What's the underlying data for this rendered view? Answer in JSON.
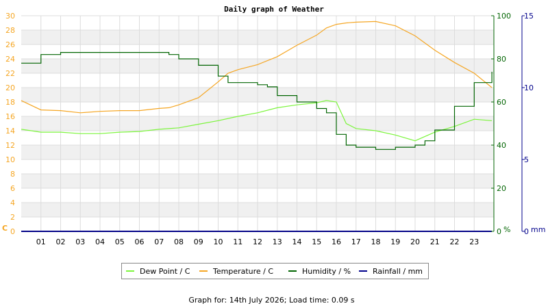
{
  "chart_data": {
    "type": "line",
    "title": "Daily graph of Weather",
    "x_ticks": [
      "01",
      "02",
      "03",
      "04",
      "05",
      "06",
      "07",
      "08",
      "09",
      "10",
      "11",
      "12",
      "13",
      "14",
      "15",
      "16",
      "17",
      "18",
      "19",
      "20",
      "21",
      "22",
      "23"
    ],
    "xlim": [
      0,
      24
    ],
    "axes": {
      "temperature": {
        "unit_label": "C",
        "ylim": [
          0,
          30
        ],
        "ticks": [
          0,
          2,
          4,
          6,
          8,
          10,
          12,
          14,
          16,
          18,
          20,
          22,
          24,
          26,
          28,
          30
        ],
        "color": "#f5a623"
      },
      "humidity": {
        "unit_label": "%",
        "ylim": [
          0,
          100
        ],
        "ticks": [
          0,
          20,
          40,
          60,
          80,
          100
        ],
        "color": "#006400"
      },
      "rainfall": {
        "unit_label": "mm",
        "ylim": [
          0,
          15
        ],
        "ticks": [
          0,
          5,
          10,
          15
        ],
        "color": "#00008b"
      }
    },
    "grid": true,
    "legend_position": "bottom",
    "series": [
      {
        "name": "Dew Point / C",
        "axis": "temperature",
        "color": "#7cf53c",
        "step": false,
        "x": [
          0,
          1,
          2,
          3,
          4,
          5,
          6,
          7,
          8,
          9,
          10,
          11,
          12,
          13,
          14,
          15,
          15.5,
          16,
          16.5,
          17,
          18,
          19,
          20,
          21,
          22,
          23,
          23.9
        ],
        "y": [
          14.2,
          13.8,
          13.8,
          13.6,
          13.6,
          13.8,
          13.9,
          14.2,
          14.4,
          14.9,
          15.4,
          16.0,
          16.5,
          17.2,
          17.6,
          17.9,
          18.2,
          18.0,
          15.0,
          14.3,
          14.0,
          13.4,
          12.6,
          13.8,
          14.6,
          15.6,
          15.4
        ]
      },
      {
        "name": "Temperature / C",
        "axis": "temperature",
        "color": "#f5a623",
        "step": false,
        "x": [
          0,
          1,
          2,
          3,
          4,
          5,
          6,
          7,
          7.5,
          8,
          9,
          10,
          10.5,
          11,
          12,
          13,
          14,
          15,
          15.5,
          16,
          16.5,
          17,
          18,
          19,
          20,
          21,
          22,
          23,
          23.9
        ],
        "y": [
          18.2,
          16.9,
          16.8,
          16.5,
          16.7,
          16.8,
          16.8,
          17.1,
          17.2,
          17.6,
          18.6,
          20.8,
          22.0,
          22.5,
          23.2,
          24.3,
          25.9,
          27.3,
          28.3,
          28.8,
          29.0,
          29.1,
          29.2,
          28.6,
          27.2,
          25.2,
          23.5,
          22.0,
          20.0
        ]
      },
      {
        "name": "Humidity / %",
        "axis": "humidity",
        "color": "#006400",
        "step": true,
        "x": [
          0,
          1,
          2,
          3,
          4,
          5,
          6,
          7,
          7.5,
          8,
          9,
          10,
          10.5,
          11,
          12,
          12.5,
          13,
          14,
          15,
          15.5,
          16,
          16.5,
          17,
          18,
          19,
          20,
          20.5,
          21,
          22,
          23,
          23.9
        ],
        "y": [
          78,
          82,
          83,
          83,
          83,
          83,
          83,
          83,
          82,
          80,
          77,
          72,
          69,
          69,
          68,
          67,
          63,
          60,
          57,
          55,
          45,
          40,
          39,
          38,
          39,
          40,
          42,
          47,
          58,
          69,
          74
        ]
      },
      {
        "name": "Rainfall / mm",
        "axis": "rainfall",
        "color": "#00008b",
        "step": true,
        "x": [
          0,
          23.9
        ],
        "y": [
          0,
          0
        ]
      }
    ],
    "footer": "Graph for: 14th July 2026; Load time: 0.09 s"
  }
}
